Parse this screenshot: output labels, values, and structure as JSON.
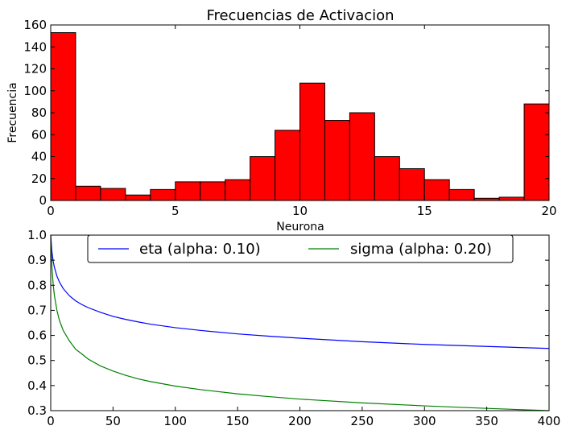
{
  "chart_data": [
    {
      "type": "bar",
      "title": "Frecuencias de Activacion",
      "xlabel": "Neurona",
      "ylabel": "Frecuencia",
      "xlim": [
        0,
        20
      ],
      "ylim": [
        0,
        160
      ],
      "xticks": [
        0,
        5,
        10,
        15,
        20
      ],
      "yticks": [
        0,
        20,
        40,
        60,
        80,
        100,
        120,
        140,
        160
      ],
      "grid": false,
      "bar_color": "#ff0000",
      "bins": [
        {
          "x0": 0,
          "x1": 1,
          "value": 153
        },
        {
          "x0": 1,
          "x1": 2,
          "value": 13
        },
        {
          "x0": 2,
          "x1": 3,
          "value": 11
        },
        {
          "x0": 3,
          "x1": 4,
          "value": 5
        },
        {
          "x0": 4,
          "x1": 5,
          "value": 10
        },
        {
          "x0": 5,
          "x1": 6,
          "value": 17
        },
        {
          "x0": 6,
          "x1": 7,
          "value": 17
        },
        {
          "x0": 7,
          "x1": 8,
          "value": 19
        },
        {
          "x0": 8,
          "x1": 9,
          "value": 40
        },
        {
          "x0": 9,
          "x1": 10,
          "value": 64
        },
        {
          "x0": 10,
          "x1": 11,
          "value": 107
        },
        {
          "x0": 11,
          "x1": 12,
          "value": 73
        },
        {
          "x0": 12,
          "x1": 13,
          "value": 80
        },
        {
          "x0": 13,
          "x1": 14,
          "value": 40
        },
        {
          "x0": 14,
          "x1": 15,
          "value": 29
        },
        {
          "x0": 15,
          "x1": 16,
          "value": 19
        },
        {
          "x0": 16,
          "x1": 17,
          "value": 10
        },
        {
          "x0": 17,
          "x1": 18,
          "value": 2
        },
        {
          "x0": 18,
          "x1": 19,
          "value": 3
        },
        {
          "x0": 19,
          "x1": 20,
          "value": 88
        }
      ]
    },
    {
      "type": "line",
      "title": "",
      "xlabel": "",
      "ylabel": "",
      "xlim": [
        0,
        400
      ],
      "ylim": [
        0.3,
        1.0
      ],
      "xticks": [
        0,
        50,
        100,
        150,
        200,
        250,
        300,
        350,
        400
      ],
      "yticks": [
        0.3,
        0.4,
        0.5,
        0.6,
        0.7,
        0.8,
        0.9,
        1.0
      ],
      "grid": false,
      "legend": "top-center",
      "series": [
        {
          "name": "eta (alpha: 0.10)",
          "color": "#0000ff",
          "x": [
            0,
            1,
            2,
            3,
            5,
            7,
            10,
            15,
            20,
            25,
            30,
            40,
            50,
            60,
            70,
            80,
            100,
            120,
            150,
            175,
            200,
            250,
            300,
            350,
            400
          ],
          "y": [
            1.0,
            0.933,
            0.895,
            0.871,
            0.836,
            0.813,
            0.787,
            0.758,
            0.738,
            0.723,
            0.711,
            0.692,
            0.676,
            0.664,
            0.654,
            0.645,
            0.631,
            0.62,
            0.606,
            0.597,
            0.589,
            0.575,
            0.564,
            0.556,
            0.548
          ]
        },
        {
          "name": "sigma (alpha: 0.20)",
          "color": "#008000",
          "x": [
            0,
            1,
            2,
            3,
            5,
            7,
            10,
            15,
            20,
            25,
            30,
            40,
            50,
            60,
            70,
            80,
            100,
            120,
            150,
            175,
            200,
            250,
            300,
            350,
            400
          ],
          "y": [
            1.0,
            0.871,
            0.802,
            0.758,
            0.699,
            0.66,
            0.62,
            0.578,
            0.545,
            0.526,
            0.506,
            0.478,
            0.458,
            0.441,
            0.427,
            0.416,
            0.398,
            0.384,
            0.367,
            0.356,
            0.346,
            0.331,
            0.319,
            0.309,
            0.3
          ]
        }
      ]
    }
  ]
}
